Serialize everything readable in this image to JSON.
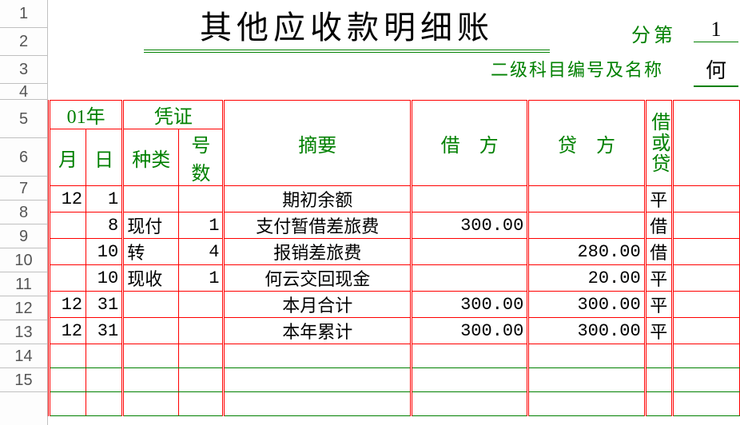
{
  "colors": {
    "grid_red": "#ff0000",
    "header_green": "#008000",
    "rownum_gray": "#c0c0c0",
    "bg": "#ffffff"
  },
  "title": "其他应收款明细账",
  "page_label": "分第",
  "page_number": "1",
  "subject_label": "二级科目编号及名称",
  "subject_value": "何",
  "header": {
    "year": "01年",
    "voucher": "凭证",
    "month": "月",
    "day": "日",
    "kind": "种类",
    "number": "号数",
    "summary": "摘要",
    "debit": "借　方",
    "credit": "贷　方",
    "dc": "借或贷"
  },
  "rows": [
    {
      "m": "12",
      "d": "1",
      "kind": "",
      "num": "",
      "desc": "期初余额",
      "debit": "",
      "credit": "",
      "dc": "平"
    },
    {
      "m": "",
      "d": "8",
      "kind": "现付",
      "num": "1",
      "desc": "支付暂借差旅费",
      "debit": "300.00",
      "credit": "",
      "dc": "借"
    },
    {
      "m": "",
      "d": "10",
      "kind": "转",
      "num": "4",
      "desc": "报销差旅费",
      "debit": "",
      "credit": "280.00",
      "dc": "借"
    },
    {
      "m": "",
      "d": "10",
      "kind": "现收",
      "num": "1",
      "desc": "何云交回现金",
      "debit": "",
      "credit": "20.00",
      "dc": "平"
    },
    {
      "m": "12",
      "d": "31",
      "kind": "",
      "num": "",
      "desc": "本月合计",
      "debit": "300.00",
      "credit": "300.00",
      "dc": "平"
    },
    {
      "m": "12",
      "d": "31",
      "kind": "",
      "num": "",
      "desc": "本年累计",
      "debit": "300.00",
      "credit": "300.00",
      "dc": "平"
    }
  ],
  "row_numbers": [
    1,
    2,
    3,
    4,
    5,
    6,
    7,
    8,
    9,
    10,
    11,
    12,
    13,
    14,
    15
  ],
  "row_heights": {
    "1": 35,
    "2": 35,
    "3": 35,
    "4": 20,
    "5": 48,
    "6": 48,
    "7": 30,
    "8": 30,
    "9": 30,
    "10": 30,
    "11": 30,
    "12": 30,
    "13": 30,
    "14": 30,
    "15": 30
  }
}
